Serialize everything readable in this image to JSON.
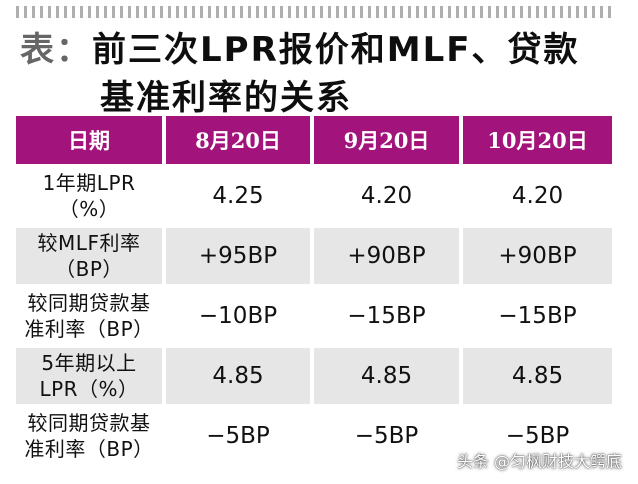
{
  "title": {
    "prefix": "表：",
    "line1": "前三次LPR报价和MLF、贷款",
    "line2": "基准利率的关系"
  },
  "table": {
    "headers": [
      "日期",
      "8月20日",
      "9月20日",
      "10月20日"
    ],
    "rows": [
      {
        "label_lines": [
          "1年期LPR",
          "（%）"
        ],
        "values": [
          "4.25",
          "4.20",
          "4.20"
        ]
      },
      {
        "label_lines": [
          "较MLF利率",
          "（BP）"
        ],
        "values": [
          "+95BP",
          "+90BP",
          "+90BP"
        ]
      },
      {
        "label_lines": [
          "较同期贷款基",
          "准利率（BP）"
        ],
        "values": [
          "−10BP",
          "−15BP",
          "−15BP"
        ]
      },
      {
        "label_lines": [
          "5年期以上",
          "LPR（%）"
        ],
        "values": [
          "4.85",
          "4.85",
          "4.85"
        ]
      },
      {
        "label_lines": [
          "较同期贷款基",
          "准利率（BP）"
        ],
        "values": [
          "−5BP",
          "−5BP",
          "−5BP"
        ]
      }
    ]
  },
  "watermark": "头条 @匀枫财技大鳄底",
  "colors": {
    "header_bg": "#a2147b",
    "header_text": "#ffffff",
    "stripe_bg": "#e6e6e6",
    "title_prefix": "#666666",
    "title_text": "#0e0e0e"
  }
}
